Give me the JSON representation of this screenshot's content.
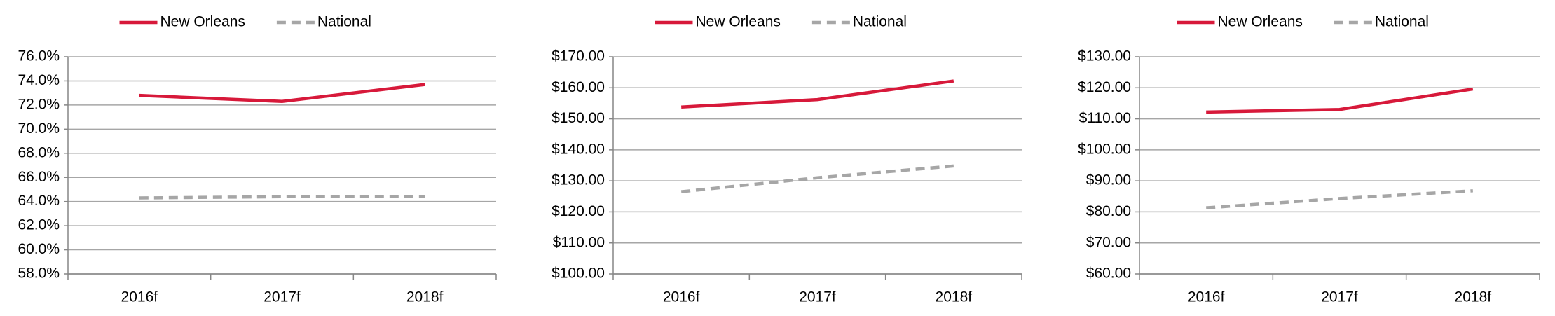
{
  "chart_data": [
    {
      "type": "line",
      "categories": [
        "2016f",
        "2017f",
        "2018f"
      ],
      "series": [
        {
          "name": "New Orleans",
          "color": "#d7193a",
          "dashed": false,
          "values": [
            72.8,
            72.3,
            73.7
          ]
        },
        {
          "name": "National",
          "color": "#a6a6a6",
          "dashed": true,
          "values": [
            64.3,
            64.4,
            64.4
          ]
        }
      ],
      "ylim": [
        58,
        76
      ],
      "yticks": [
        {
          "value": 58,
          "label": "58.0%"
        },
        {
          "value": 60,
          "label": "60.0%"
        },
        {
          "value": 62,
          "label": "62.0%"
        },
        {
          "value": 64,
          "label": "64.0%"
        },
        {
          "value": 66,
          "label": "66.0%"
        },
        {
          "value": 68,
          "label": "68.0%"
        },
        {
          "value": 70,
          "label": "70.0%"
        },
        {
          "value": 72,
          "label": "72.0%"
        },
        {
          "value": 74,
          "label": "74.0%"
        },
        {
          "value": 76,
          "label": "76.0%"
        }
      ],
      "grid": true,
      "legend": "top"
    },
    {
      "type": "line",
      "categories": [
        "2016f",
        "2017f",
        "2018f"
      ],
      "series": [
        {
          "name": "New Orleans",
          "color": "#d7193a",
          "dashed": false,
          "values": [
            153.8,
            156.2,
            162.2
          ]
        },
        {
          "name": "National",
          "color": "#a6a6a6",
          "dashed": true,
          "values": [
            126.5,
            131,
            134.8
          ]
        }
      ],
      "ylim": [
        100,
        170
      ],
      "yticks": [
        {
          "value": 100,
          "label": "$100.00"
        },
        {
          "value": 110,
          "label": "$110.00"
        },
        {
          "value": 120,
          "label": "$120.00"
        },
        {
          "value": 130,
          "label": "$130.00"
        },
        {
          "value": 140,
          "label": "$140.00"
        },
        {
          "value": 150,
          "label": "$150.00"
        },
        {
          "value": 160,
          "label": "$160.00"
        },
        {
          "value": 170,
          "label": "$170.00"
        }
      ],
      "grid": true,
      "legend": "top"
    },
    {
      "type": "line",
      "categories": [
        "2016f",
        "2017f",
        "2018f"
      ],
      "series": [
        {
          "name": "New Orleans",
          "color": "#d7193a",
          "dashed": false,
          "values": [
            112.2,
            113,
            119.6
          ]
        },
        {
          "name": "National",
          "color": "#a6a6a6",
          "dashed": true,
          "values": [
            81.3,
            84.3,
            86.8
          ]
        }
      ],
      "ylim": [
        60,
        130
      ],
      "yticks": [
        {
          "value": 60,
          "label": "$60.00"
        },
        {
          "value": 70,
          "label": "$70.00"
        },
        {
          "value": 80,
          "label": "$80.00"
        },
        {
          "value": 90,
          "label": "$90.00"
        },
        {
          "value": 100,
          "label": "$100.00"
        },
        {
          "value": 110,
          "label": "$110.00"
        },
        {
          "value": 120,
          "label": "$120.00"
        },
        {
          "value": 130,
          "label": "$130.00"
        }
      ],
      "grid": true,
      "legend": "top"
    }
  ]
}
